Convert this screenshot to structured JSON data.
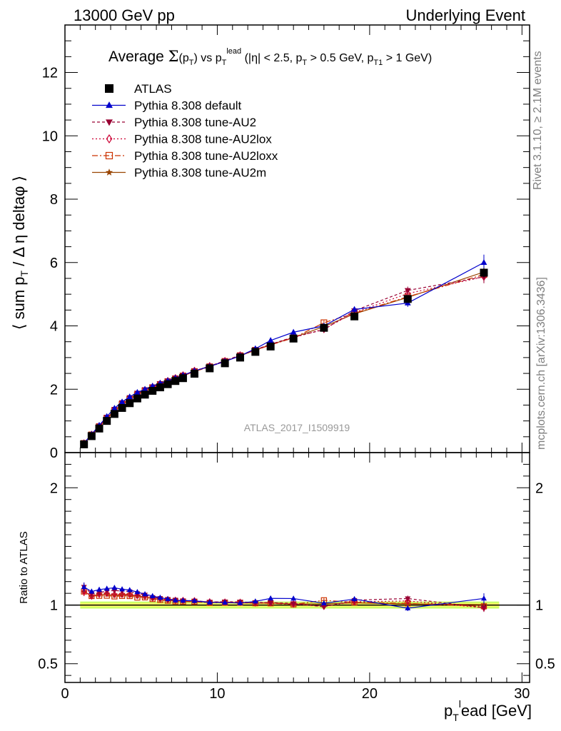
{
  "header": {
    "left": "13000 GeV pp",
    "right": "Underlying Event"
  },
  "side_labels": {
    "rivet": "Rivet 3.1.10, ≥ 2.1M events",
    "mcplots": "mcplots.cern.ch [arXiv:1306.3436]"
  },
  "watermark": "ATLAS_2017_I1509919",
  "colors": {
    "data": "#000000",
    "default": "#0000cc",
    "au2": "#990033",
    "au2lox": "#cc0033",
    "au2loxx": "#cc3300",
    "au2m": "#994400",
    "band_outer": "#ccff66",
    "band_inner": "#ffff66"
  },
  "chart_data": [
    {
      "type": "line",
      "panel": "main",
      "title": "Average Σ(p_T) vs p_T^lead (|η| < 2.5, p_T > 0.5 GeV, p_T1 > 1 GeV)",
      "title_parts": {
        "t1": "Average ",
        "t2": "Σ",
        "t3": "(p",
        "t4": "T",
        "t5": ")  vs p",
        "t6": "T",
        "t7": "lead",
        "t8": " (|η| < 2.5, p",
        "t9": "T",
        "t10": " > 0.5 GeV, p",
        "t11": "T1",
        "t12": " > 1 GeV)"
      },
      "ylabel": "⟨ sum p_T / Δ η deltaφ ⟩",
      "ylabel_parts": {
        "a": "⟨ sum p",
        "b": "T",
        "c": " / Δ η deltaφ ⟩"
      },
      "xlim": [
        0,
        30.5
      ],
      "ylim": [
        0,
        13.5
      ],
      "yticks": [
        0,
        2,
        4,
        6,
        8,
        10,
        12
      ],
      "x": [
        1.25,
        1.75,
        2.25,
        2.75,
        3.25,
        3.75,
        4.25,
        4.75,
        5.25,
        5.75,
        6.25,
        6.75,
        7.25,
        7.75,
        8.5,
        9.5,
        10.5,
        11.5,
        12.5,
        13.5,
        15.0,
        17.0,
        19.0,
        22.5,
        27.5
      ],
      "legend": [
        {
          "name": "ATLAS",
          "key": "data",
          "marker": "square",
          "dash": ""
        },
        {
          "name": "Pythia 8.308 default",
          "key": "default",
          "marker": "triangle-up",
          "dash": ""
        },
        {
          "name": "Pythia 8.308 tune-AU2",
          "key": "au2",
          "marker": "triangle-down",
          "dash": "4,3"
        },
        {
          "name": "Pythia 8.308 tune-AU2lox",
          "key": "au2lox",
          "marker": "diamond-open",
          "dash": "2,3"
        },
        {
          "name": "Pythia 8.308 tune-AU2loxx",
          "key": "au2loxx",
          "marker": "square-open",
          "dash": "8,3,2,3"
        },
        {
          "name": "Pythia 8.308 tune-AU2m",
          "key": "au2m",
          "marker": "star",
          "dash": ""
        }
      ],
      "series": [
        {
          "name": "ATLAS",
          "key": "data",
          "values": [
            0.26,
            0.52,
            0.76,
            1.0,
            1.22,
            1.41,
            1.56,
            1.71,
            1.83,
            1.95,
            2.06,
            2.16,
            2.26,
            2.35,
            2.49,
            2.66,
            2.82,
            3.0,
            3.18,
            3.35,
            3.6,
            3.94,
            4.3,
            4.85,
            5.68
          ],
          "errors": [
            0.01,
            0.01,
            0.01,
            0.01,
            0.01,
            0.01,
            0.01,
            0.01,
            0.01,
            0.02,
            0.02,
            0.02,
            0.02,
            0.02,
            0.02,
            0.02,
            0.03,
            0.03,
            0.03,
            0.04,
            0.04,
            0.05,
            0.06,
            0.08,
            0.15
          ]
        },
        {
          "name": "Pythia 8.308 default",
          "key": "default",
          "values": [
            0.3,
            0.58,
            0.86,
            1.14,
            1.4,
            1.6,
            1.76,
            1.9,
            2.0,
            2.1,
            2.19,
            2.27,
            2.35,
            2.44,
            2.58,
            2.72,
            2.88,
            3.05,
            3.28,
            3.54,
            3.8,
            4.0,
            4.52,
            4.72,
            6.0
          ],
          "errors": [
            0.01,
            0.01,
            0.01,
            0.01,
            0.01,
            0.01,
            0.01,
            0.01,
            0.01,
            0.02,
            0.02,
            0.02,
            0.02,
            0.02,
            0.02,
            0.03,
            0.03,
            0.04,
            0.04,
            0.05,
            0.06,
            0.07,
            0.09,
            0.12,
            0.25
          ]
        },
        {
          "name": "Pythia 8.308 tune-AU2",
          "key": "au2",
          "values": [
            0.3,
            0.57,
            0.84,
            1.12,
            1.37,
            1.58,
            1.74,
            1.88,
            1.99,
            2.08,
            2.18,
            2.27,
            2.36,
            2.44,
            2.58,
            2.73,
            2.9,
            3.08,
            3.25,
            3.42,
            3.65,
            3.88,
            4.48,
            5.12,
            5.55
          ],
          "errors": [
            0.01,
            0.01,
            0.01,
            0.01,
            0.01,
            0.01,
            0.01,
            0.01,
            0.01,
            0.02,
            0.02,
            0.02,
            0.02,
            0.02,
            0.02,
            0.03,
            0.03,
            0.04,
            0.04,
            0.05,
            0.06,
            0.07,
            0.09,
            0.12,
            0.2
          ]
        },
        {
          "name": "Pythia 8.308 tune-AU2lox",
          "key": "au2lox",
          "values": [
            0.29,
            0.56,
            0.83,
            1.1,
            1.33,
            1.54,
            1.7,
            1.85,
            1.97,
            2.07,
            2.17,
            2.26,
            2.35,
            2.44,
            2.58,
            2.73,
            2.89,
            3.07,
            3.24,
            3.42,
            3.63,
            3.9,
            4.42,
            5.02,
            5.55
          ],
          "errors": [
            0.01,
            0.01,
            0.01,
            0.01,
            0.01,
            0.01,
            0.01,
            0.01,
            0.01,
            0.02,
            0.02,
            0.02,
            0.02,
            0.02,
            0.02,
            0.03,
            0.03,
            0.04,
            0.04,
            0.05,
            0.06,
            0.07,
            0.09,
            0.12,
            0.2
          ]
        },
        {
          "name": "Pythia 8.308 tune-AU2loxx",
          "key": "au2loxx",
          "values": [
            0.29,
            0.56,
            0.82,
            1.08,
            1.31,
            1.52,
            1.68,
            1.82,
            1.95,
            2.05,
            2.15,
            2.24,
            2.33,
            2.42,
            2.56,
            2.71,
            2.88,
            3.06,
            3.23,
            3.4,
            3.62,
            4.1,
            4.4,
            4.92,
            5.62
          ],
          "errors": [
            0.01,
            0.01,
            0.01,
            0.01,
            0.01,
            0.01,
            0.01,
            0.01,
            0.01,
            0.02,
            0.02,
            0.02,
            0.02,
            0.02,
            0.02,
            0.03,
            0.03,
            0.04,
            0.04,
            0.05,
            0.06,
            0.07,
            0.09,
            0.12,
            0.2
          ]
        },
        {
          "name": "Pythia 8.308 tune-AU2m",
          "key": "au2m",
          "values": [
            0.29,
            0.56,
            0.83,
            1.09,
            1.32,
            1.53,
            1.69,
            1.84,
            1.96,
            2.06,
            2.16,
            2.25,
            2.34,
            2.43,
            2.57,
            2.72,
            2.88,
            3.06,
            3.23,
            3.41,
            3.63,
            3.98,
            4.38,
            4.9,
            5.7
          ],
          "errors": [
            0.01,
            0.01,
            0.01,
            0.01,
            0.01,
            0.01,
            0.01,
            0.01,
            0.01,
            0.02,
            0.02,
            0.02,
            0.02,
            0.02,
            0.02,
            0.03,
            0.03,
            0.04,
            0.04,
            0.05,
            0.06,
            0.07,
            0.09,
            0.12,
            0.2
          ]
        }
      ]
    },
    {
      "type": "line",
      "panel": "ratio",
      "ylabel": "Ratio to ATLAS",
      "xlabel": "p_T^l ead [GeV]",
      "xlabel_parts": {
        "a": "p",
        "b": "T",
        "c": "l",
        "d": "ead [GeV]"
      },
      "xlim": [
        0,
        30.5
      ],
      "ylim": [
        0.34,
        2.3
      ],
      "yticks": [
        0.5,
        1,
        2
      ],
      "ytick_labels": [
        "0.5",
        "1",
        "2"
      ],
      "xticks": [
        0,
        10,
        20,
        30
      ],
      "xtick_labels": [
        "0",
        "10",
        "20",
        "30"
      ],
      "band": {
        "center": 1.0,
        "half_width_outer": 0.03,
        "half_width_inner": 0.015
      }
    }
  ]
}
